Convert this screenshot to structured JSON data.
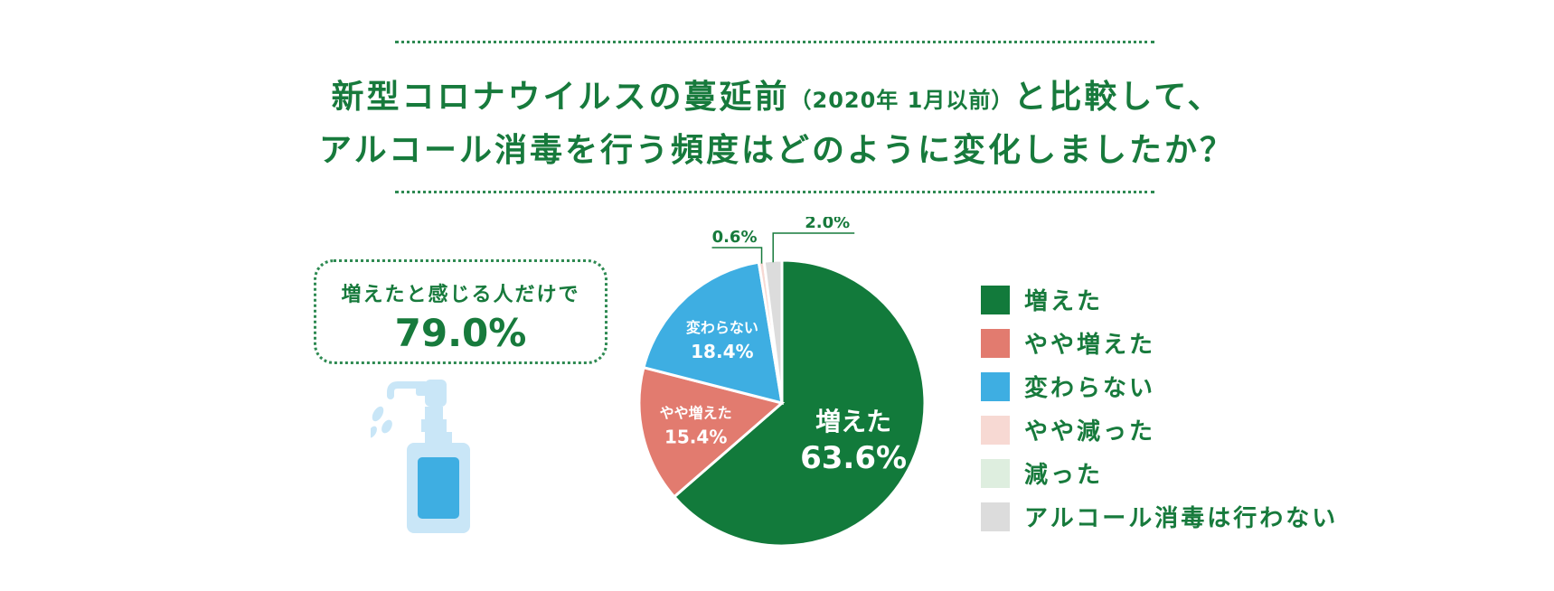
{
  "title": {
    "line1_a": "新型コロナウイルスの蔓延前",
    "line1_paren": "（2020年 1月以前）",
    "line1_b": "と比較して、",
    "line2": "アルコール消毒を行う頻度はどのように変化しましたか？"
  },
  "callout": {
    "text": "増えたと感じる人だけで",
    "value": "79.0%"
  },
  "colors": {
    "accent": "#177a3c",
    "bottle_light": "#c9e6f7",
    "bottle_dark": "#3eaee2"
  },
  "chart_data": {
    "type": "pie",
    "legend_position": "right",
    "slices": [
      {
        "label": "増えた",
        "value": 63.6,
        "color": "#127a3b",
        "display": "63.6%"
      },
      {
        "label": "やや増えた",
        "value": 15.4,
        "color": "#e27b6f",
        "display": "15.4%"
      },
      {
        "label": "変わらない",
        "value": 18.4,
        "color": "#3eaee2",
        "display": "18.4%"
      },
      {
        "label": "やや減った",
        "value": 0.6,
        "color": "#f7d9d3",
        "display": "0.6%"
      },
      {
        "label": "減った",
        "value": 0.0,
        "color": "#deeedf",
        "display": ""
      },
      {
        "label": "アルコール消毒は行わない",
        "value": 2.0,
        "color": "#dcdcdc",
        "display": "2.0%"
      }
    ]
  }
}
